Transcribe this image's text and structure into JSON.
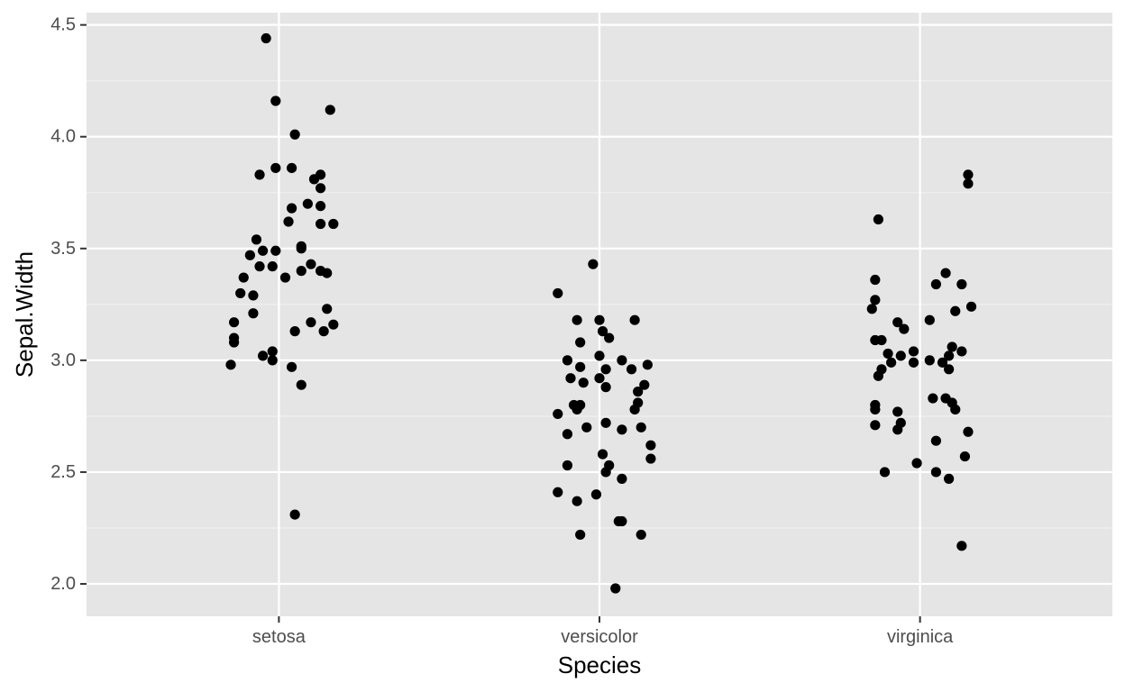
{
  "colors": {
    "panel_background": "#e5e5e5",
    "grid_major": "#ffffff",
    "grid_minor": "#f2f2f2",
    "point": "#000000",
    "tick_label": "#4d4d4d",
    "axis_title": "#000000"
  },
  "chart_data": {
    "type": "scatter",
    "subtype": "jitter",
    "title": "",
    "xlabel": "Species",
    "ylabel": "Sepal.Width",
    "categories": [
      "setosa",
      "versicolor",
      "virginica"
    ],
    "ylim": [
      1.855,
      4.555
    ],
    "y_ticks": [
      2.0,
      2.5,
      3.0,
      3.5,
      4.0,
      4.5
    ],
    "y_tick_labels": [
      "2.0",
      "2.5",
      "3.0",
      "3.5",
      "4.0",
      "4.5"
    ],
    "grid": true,
    "legend": "none",
    "points": {
      "setosa": [
        {
          "x": -0.04,
          "y": 4.44
        },
        {
          "x": -0.01,
          "y": 4.16
        },
        {
          "x": 0.16,
          "y": 4.12
        },
        {
          "x": 0.05,
          "y": 4.01
        },
        {
          "x": -0.06,
          "y": 3.83
        },
        {
          "x": -0.01,
          "y": 3.86
        },
        {
          "x": 0.04,
          "y": 3.86
        },
        {
          "x": 0.13,
          "y": 3.83
        },
        {
          "x": 0.11,
          "y": 3.81
        },
        {
          "x": 0.13,
          "y": 3.77
        },
        {
          "x": 0.09,
          "y": 3.7
        },
        {
          "x": 0.13,
          "y": 3.69
        },
        {
          "x": 0.04,
          "y": 3.68
        },
        {
          "x": 0.03,
          "y": 3.62
        },
        {
          "x": 0.13,
          "y": 3.61
        },
        {
          "x": 0.17,
          "y": 3.61
        },
        {
          "x": -0.07,
          "y": 3.54
        },
        {
          "x": 0.07,
          "y": 3.51
        },
        {
          "x": 0.07,
          "y": 3.5
        },
        {
          "x": -0.09,
          "y": 3.47
        },
        {
          "x": -0.05,
          "y": 3.49
        },
        {
          "x": -0.01,
          "y": 3.49
        },
        {
          "x": -0.06,
          "y": 3.42
        },
        {
          "x": -0.02,
          "y": 3.42
        },
        {
          "x": 0.1,
          "y": 3.43
        },
        {
          "x": 0.07,
          "y": 3.4
        },
        {
          "x": 0.13,
          "y": 3.4
        },
        {
          "x": 0.15,
          "y": 3.39
        },
        {
          "x": 0.02,
          "y": 3.37
        },
        {
          "x": -0.11,
          "y": 3.37
        },
        {
          "x": -0.12,
          "y": 3.3
        },
        {
          "x": -0.08,
          "y": 3.29
        },
        {
          "x": 0.15,
          "y": 3.23
        },
        {
          "x": -0.08,
          "y": 3.21
        },
        {
          "x": -0.14,
          "y": 3.17
        },
        {
          "x": 0.1,
          "y": 3.17
        },
        {
          "x": 0.17,
          "y": 3.16
        },
        {
          "x": 0.05,
          "y": 3.13
        },
        {
          "x": 0.14,
          "y": 3.13
        },
        {
          "x": -0.14,
          "y": 3.1
        },
        {
          "x": -0.14,
          "y": 3.08
        },
        {
          "x": -0.02,
          "y": 3.04
        },
        {
          "x": -0.05,
          "y": 3.02
        },
        {
          "x": -0.02,
          "y": 3.0
        },
        {
          "x": -0.15,
          "y": 2.98
        },
        {
          "x": 0.04,
          "y": 2.97
        },
        {
          "x": 0.07,
          "y": 2.89
        },
        {
          "x": 0.05,
          "y": 2.31
        }
      ],
      "versicolor": [
        {
          "x": -0.02,
          "y": 3.43
        },
        {
          "x": -0.13,
          "y": 3.3
        },
        {
          "x": -0.07,
          "y": 3.18
        },
        {
          "x": 0.0,
          "y": 3.18
        },
        {
          "x": 0.11,
          "y": 3.18
        },
        {
          "x": 0.01,
          "y": 3.13
        },
        {
          "x": 0.03,
          "y": 3.1
        },
        {
          "x": -0.06,
          "y": 3.08
        },
        {
          "x": 0.0,
          "y": 3.02
        },
        {
          "x": -0.1,
          "y": 3.0
        },
        {
          "x": 0.07,
          "y": 3.0
        },
        {
          "x": 0.15,
          "y": 2.98
        },
        {
          "x": -0.06,
          "y": 2.97
        },
        {
          "x": 0.02,
          "y": 2.96
        },
        {
          "x": 0.1,
          "y": 2.96
        },
        {
          "x": -0.09,
          "y": 2.92
        },
        {
          "x": 0.0,
          "y": 2.92
        },
        {
          "x": -0.05,
          "y": 2.9
        },
        {
          "x": 0.02,
          "y": 2.88
        },
        {
          "x": 0.14,
          "y": 2.89
        },
        {
          "x": 0.12,
          "y": 2.86
        },
        {
          "x": -0.08,
          "y": 2.8
        },
        {
          "x": -0.06,
          "y": 2.8
        },
        {
          "x": 0.12,
          "y": 2.81
        },
        {
          "x": 0.11,
          "y": 2.78
        },
        {
          "x": -0.07,
          "y": 2.78
        },
        {
          "x": -0.13,
          "y": 2.76
        },
        {
          "x": 0.02,
          "y": 2.72
        },
        {
          "x": -0.04,
          "y": 2.7
        },
        {
          "x": 0.13,
          "y": 2.7
        },
        {
          "x": 0.07,
          "y": 2.69
        },
        {
          "x": -0.1,
          "y": 2.67
        },
        {
          "x": 0.16,
          "y": 2.62
        },
        {
          "x": 0.01,
          "y": 2.58
        },
        {
          "x": 0.16,
          "y": 2.56
        },
        {
          "x": -0.1,
          "y": 2.53
        },
        {
          "x": 0.03,
          "y": 2.53
        },
        {
          "x": 0.02,
          "y": 2.5
        },
        {
          "x": 0.07,
          "y": 2.47
        },
        {
          "x": -0.13,
          "y": 2.41
        },
        {
          "x": -0.01,
          "y": 2.4
        },
        {
          "x": -0.07,
          "y": 2.37
        },
        {
          "x": 0.06,
          "y": 2.28
        },
        {
          "x": 0.07,
          "y": 2.28
        },
        {
          "x": 0.13,
          "y": 2.22
        },
        {
          "x": -0.06,
          "y": 2.22
        },
        {
          "x": 0.05,
          "y": 1.98
        }
      ],
      "virginica": [
        {
          "x": 0.15,
          "y": 3.83
        },
        {
          "x": 0.15,
          "y": 3.79
        },
        {
          "x": -0.13,
          "y": 3.63
        },
        {
          "x": 0.08,
          "y": 3.39
        },
        {
          "x": -0.14,
          "y": 3.36
        },
        {
          "x": 0.05,
          "y": 3.34
        },
        {
          "x": 0.13,
          "y": 3.34
        },
        {
          "x": -0.14,
          "y": 3.27
        },
        {
          "x": 0.16,
          "y": 3.24
        },
        {
          "x": -0.15,
          "y": 3.23
        },
        {
          "x": 0.11,
          "y": 3.22
        },
        {
          "x": 0.03,
          "y": 3.18
        },
        {
          "x": -0.07,
          "y": 3.17
        },
        {
          "x": -0.05,
          "y": 3.14
        },
        {
          "x": -0.14,
          "y": 3.09
        },
        {
          "x": -0.12,
          "y": 3.09
        },
        {
          "x": 0.1,
          "y": 3.06
        },
        {
          "x": 0.13,
          "y": 3.04
        },
        {
          "x": -0.1,
          "y": 3.03
        },
        {
          "x": -0.06,
          "y": 3.02
        },
        {
          "x": -0.02,
          "y": 3.04
        },
        {
          "x": 0.09,
          "y": 3.02
        },
        {
          "x": -0.09,
          "y": 2.99
        },
        {
          "x": -0.02,
          "y": 2.99
        },
        {
          "x": 0.03,
          "y": 3.0
        },
        {
          "x": 0.07,
          "y": 2.99
        },
        {
          "x": -0.12,
          "y": 2.96
        },
        {
          "x": -0.13,
          "y": 2.93
        },
        {
          "x": 0.09,
          "y": 2.96
        },
        {
          "x": 0.04,
          "y": 2.83
        },
        {
          "x": 0.08,
          "y": 2.83
        },
        {
          "x": 0.1,
          "y": 2.81
        },
        {
          "x": -0.14,
          "y": 2.8
        },
        {
          "x": -0.14,
          "y": 2.78
        },
        {
          "x": 0.11,
          "y": 2.78
        },
        {
          "x": -0.07,
          "y": 2.77
        },
        {
          "x": -0.06,
          "y": 2.72
        },
        {
          "x": -0.14,
          "y": 2.71
        },
        {
          "x": -0.07,
          "y": 2.69
        },
        {
          "x": 0.15,
          "y": 2.68
        },
        {
          "x": 0.05,
          "y": 2.64
        },
        {
          "x": 0.14,
          "y": 2.57
        },
        {
          "x": -0.01,
          "y": 2.54
        },
        {
          "x": 0.05,
          "y": 2.5
        },
        {
          "x": -0.11,
          "y": 2.5
        },
        {
          "x": 0.09,
          "y": 2.47
        },
        {
          "x": 0.13,
          "y": 2.17
        }
      ]
    }
  }
}
